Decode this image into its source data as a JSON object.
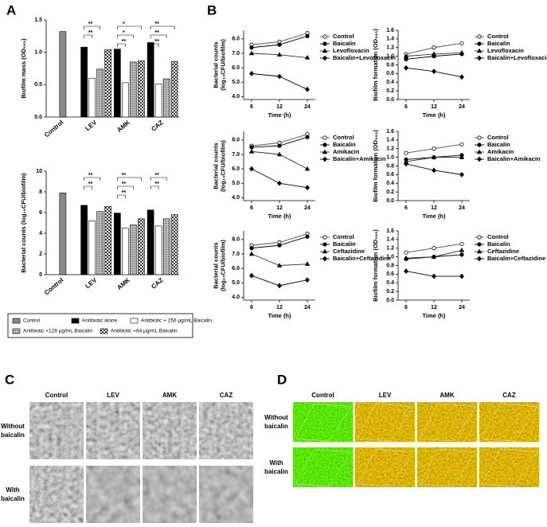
{
  "panels": [
    "A",
    "B",
    "C",
    "D"
  ],
  "chart_data": [
    {
      "type": "bar",
      "ylabel": "Biofilm mass (OD₅₉₅)",
      "categories": [
        "Control",
        "LEV",
        "AMK",
        "CAZ"
      ],
      "ylim": [
        0,
        1.5
      ],
      "yticks": [
        {
          "value": 0,
          "label": "0.0"
        },
        {
          "value": 0.5,
          "label": "0.5"
        },
        {
          "value": 1,
          "label": "1.0"
        },
        {
          "value": 1.5,
          "label": "1.5"
        }
      ],
      "series": [
        {
          "name": "Control",
          "color": "#8a8a8a",
          "values": [
            1.32,
            null,
            null,
            null
          ]
        },
        {
          "name": "Antibiotic alone",
          "color": "#000000",
          "values": [
            null,
            1.08,
            1.05,
            1.15
          ]
        },
        {
          "name": "Antibiotic + 256 μg/mL Baicalin",
          "color": "#ffffff",
          "values": [
            null,
            0.6,
            0.53,
            0.51
          ]
        },
        {
          "name": "Antibiotic +128 μg/mL Baicalin",
          "color": "#bdbdbd",
          "pattern": "dots",
          "values": [
            null,
            0.74,
            0.85,
            0.59
          ]
        },
        {
          "name": "Antibiotic +64 μg/mL Baicalin",
          "color": "#ffffff",
          "pattern": "checks",
          "values": [
            null,
            1.04,
            0.87,
            0.86
          ]
        }
      ],
      "significance": [
        {
          "category": 1,
          "series": [
            1,
            3
          ],
          "text": "**"
        },
        {
          "category": 1,
          "series": [
            1,
            2
          ],
          "text": "**"
        },
        {
          "category": 2,
          "series": [
            1,
            4
          ],
          "text": "*"
        },
        {
          "category": 2,
          "series": [
            1,
            3
          ],
          "text": "*"
        },
        {
          "category": 2,
          "series": [
            1,
            2
          ],
          "text": "**"
        },
        {
          "category": 3,
          "series": [
            1,
            4
          ],
          "text": "**"
        },
        {
          "category": 3,
          "series": [
            1,
            3
          ],
          "text": "**"
        },
        {
          "category": 3,
          "series": [
            1,
            2
          ],
          "text": "**"
        }
      ]
    },
    {
      "type": "bar",
      "ylabel": "Bacterial counts (log₁₀CFU/biofilm)",
      "categories": [
        "Control",
        "LEV",
        "AMK",
        "CAZ"
      ],
      "ylim": [
        0,
        10
      ],
      "yticks": [
        0,
        2,
        4,
        6,
        8,
        10
      ],
      "series": [
        {
          "color": "#8a8a8a",
          "values": [
            7.9,
            null,
            null,
            null
          ]
        },
        {
          "color": "#000000",
          "values": [
            null,
            6.7,
            5.95,
            6.25
          ]
        },
        {
          "color": "#ffffff",
          "values": [
            null,
            5.2,
            4.5,
            4.7
          ]
        },
        {
          "color": "#bdbdbd",
          "pattern": "dots",
          "values": [
            null,
            6.1,
            4.8,
            5.4
          ]
        },
        {
          "color": "#ffffff",
          "pattern": "checks",
          "values": [
            null,
            6.6,
            5.4,
            5.8
          ]
        }
      ],
      "significance": [
        {
          "category": 1,
          "series": [
            1,
            3
          ],
          "text": "**"
        },
        {
          "category": 1,
          "series": [
            1,
            2
          ],
          "text": "**"
        },
        {
          "category": 2,
          "series": [
            1,
            4
          ],
          "text": "**"
        },
        {
          "category": 2,
          "series": [
            1,
            3
          ],
          "text": "**"
        },
        {
          "category": 2,
          "series": [
            1,
            2
          ],
          "text": "**"
        },
        {
          "category": 3,
          "series": [
            1,
            3
          ],
          "text": "**"
        },
        {
          "category": 3,
          "series": [
            1,
            2
          ],
          "text": "**"
        }
      ]
    },
    {
      "type": "line",
      "ylabel": [
        "Bacterial counts",
        "(log₁₀CFU/biofilm)"
      ],
      "xlabel": "Time (h)",
      "categories": [
        "6",
        "12",
        "24"
      ],
      "ylim": [
        3.8,
        8.6
      ],
      "yticks": [
        {
          "value": 4,
          "label": "4.0"
        },
        {
          "value": 5,
          "label": "5.0"
        },
        {
          "value": 6,
          "label": "6.0"
        },
        {
          "value": 7,
          "label": "7.0"
        },
        {
          "value": 8,
          "label": "8.0"
        }
      ],
      "series": [
        {
          "name": "Control",
          "color": "#555555",
          "marker": "circle-open",
          "values": [
            7.6,
            7.8,
            8.4
          ]
        },
        {
          "name": "Baicalin",
          "color": "#000000",
          "marker": "circle",
          "values": [
            7.4,
            7.6,
            8.2
          ]
        },
        {
          "name": "Levofloxacin",
          "color": "#333333",
          "marker": "triangle",
          "values": [
            7.0,
            6.9,
            6.7
          ]
        },
        {
          "name": "Baicalin+Levofloxacin",
          "color": "#000000",
          "marker": "diamond",
          "values": [
            5.6,
            5.4,
            4.5
          ]
        }
      ]
    },
    {
      "type": "line",
      "ylabel": [
        "Biofilm formation (OD₅₉₅)"
      ],
      "xlabel": "Time (h)",
      "categories": [
        "6",
        "12",
        "24"
      ],
      "ylim": [
        0,
        1.6
      ],
      "yticks": [
        {
          "value": 0,
          "label": "0.0"
        },
        {
          "value": 0.2,
          "label": "0.2"
        },
        {
          "value": 0.4,
          "label": "0.4"
        },
        {
          "value": 0.6,
          "label": "0.6"
        },
        {
          "value": 0.8,
          "label": "0.8"
        },
        {
          "value": 1,
          "label": "1.0"
        },
        {
          "value": 1.2,
          "label": "1.2"
        },
        {
          "value": 1.4,
          "label": "1.4"
        },
        {
          "value": 1.6,
          "label": "1.6"
        }
      ],
      "series": [
        {
          "name": "Control",
          "color": "#555555",
          "marker": "circle-open",
          "values": [
            1.05,
            1.2,
            1.3
          ]
        },
        {
          "name": "Baicalin",
          "color": "#000000",
          "marker": "circle",
          "values": [
            0.93,
            1.0,
            1.05
          ]
        },
        {
          "name": "Levofloxacin",
          "color": "#333333",
          "marker": "triangle",
          "values": [
            1.0,
            1.05,
            1.08
          ]
        },
        {
          "name": "Baicalin+Levofloxacin",
          "color": "#000000",
          "marker": "diamond",
          "values": [
            0.73,
            0.65,
            0.52
          ]
        }
      ]
    },
    {
      "type": "line",
      "ylabel": [
        "Bacterial counts",
        "(log₁₀CFU/biofilm)"
      ],
      "xlabel": "Time (h)",
      "categories": [
        "6",
        "12",
        "24"
      ],
      "ylim": [
        3.8,
        8.6
      ],
      "yticks": [
        {
          "value": 4,
          "label": "4.0"
        },
        {
          "value": 5,
          "label": "5.0"
        },
        {
          "value": 6,
          "label": "6.0"
        },
        {
          "value": 7,
          "label": "7.0"
        },
        {
          "value": 8,
          "label": "8.0"
        }
      ],
      "series": [
        {
          "name": "Control",
          "color": "#555555",
          "marker": "circle-open",
          "values": [
            7.6,
            7.8,
            8.4
          ]
        },
        {
          "name": "Baicalin",
          "color": "#000000",
          "marker": "circle",
          "values": [
            7.5,
            7.6,
            8.2
          ]
        },
        {
          "name": "Amikacin",
          "color": "#333333",
          "marker": "triangle",
          "values": [
            7.2,
            7.0,
            6.0
          ]
        },
        {
          "name": "Baicalin+Amikacin",
          "color": "#000000",
          "marker": "diamond",
          "values": [
            6.0,
            5.0,
            4.7
          ]
        }
      ]
    },
    {
      "type": "line",
      "ylabel": [
        "Biofilm formation (OD₅₉₅)"
      ],
      "xlabel": "Time (h)",
      "categories": [
        "6",
        "12",
        "24"
      ],
      "ylim": [
        0,
        1.6
      ],
      "yticks": [
        {
          "value": 0,
          "label": "0.0"
        },
        {
          "value": 0.2,
          "label": "0.2"
        },
        {
          "value": 0.4,
          "label": "0.4"
        },
        {
          "value": 0.6,
          "label": "0.6"
        },
        {
          "value": 0.8,
          "label": "0.8"
        },
        {
          "value": 1,
          "label": "1.0"
        },
        {
          "value": 1.2,
          "label": "1.2"
        },
        {
          "value": 1.4,
          "label": "1.4"
        },
        {
          "value": 1.6,
          "label": "1.6"
        }
      ],
      "series": [
        {
          "name": "Control",
          "color": "#555555",
          "marker": "circle-open",
          "values": [
            1.1,
            1.2,
            1.3
          ]
        },
        {
          "name": "Baicalin",
          "color": "#000000",
          "marker": "circle",
          "values": [
            0.95,
            1.0,
            1.05
          ]
        },
        {
          "name": "Amikacin",
          "color": "#333333",
          "marker": "triangle",
          "values": [
            0.9,
            1.0,
            1.0
          ]
        },
        {
          "name": "Baicalin+Amikacin",
          "color": "#000000",
          "marker": "diamond",
          "values": [
            0.85,
            0.7,
            0.6
          ]
        }
      ]
    },
    {
      "type": "line",
      "ylabel": [
        "Bacterial counts",
        "(log₁₀CFU/biofilm)"
      ],
      "xlabel": "Time (h)",
      "categories": [
        "6",
        "12",
        "24"
      ],
      "ylim": [
        3.8,
        8.6
      ],
      "yticks": [
        {
          "value": 4,
          "label": "4.0"
        },
        {
          "value": 5,
          "label": "5.0"
        },
        {
          "value": 6,
          "label": "6.0"
        },
        {
          "value": 7,
          "label": "7.0"
        },
        {
          "value": 8,
          "label": "8.0"
        }
      ],
      "series": [
        {
          "name": "Control",
          "color": "#555555",
          "marker": "circle-open",
          "values": [
            7.6,
            7.8,
            8.4
          ]
        },
        {
          "name": "Baicalin",
          "color": "#000000",
          "marker": "circle",
          "values": [
            7.4,
            7.6,
            8.2
          ]
        },
        {
          "name": "Ceftazidine",
          "color": "#333333",
          "marker": "triangle",
          "values": [
            7.0,
            6.2,
            6.3
          ]
        },
        {
          "name": "Baicalin+Ceftazidine",
          "color": "#000000",
          "marker": "diamond",
          "values": [
            5.5,
            4.8,
            5.2
          ]
        }
      ]
    },
    {
      "type": "line",
      "ylabel": [
        "Biofilm formation (OD₅₉₅)"
      ],
      "xlabel": "Time (h)",
      "categories": [
        "6",
        "12",
        "24"
      ],
      "ylim": [
        0,
        1.6
      ],
      "yticks": [
        {
          "value": 0,
          "label": "0.0"
        },
        {
          "value": 0.2,
          "label": "0.2"
        },
        {
          "value": 0.4,
          "label": "0.4"
        },
        {
          "value": 0.6,
          "label": "0.6"
        },
        {
          "value": 0.8,
          "label": "0.8"
        },
        {
          "value": 1,
          "label": "1.0"
        },
        {
          "value": 1.2,
          "label": "1.2"
        },
        {
          "value": 1.4,
          "label": "1.4"
        },
        {
          "value": 1.6,
          "label": "1.6"
        }
      ],
      "series": [
        {
          "name": "Control",
          "color": "#555555",
          "marker": "circle-open",
          "values": [
            1.1,
            1.2,
            1.3
          ]
        },
        {
          "name": "Baicalin",
          "color": "#000000",
          "marker": "circle",
          "values": [
            0.95,
            1.0,
            1.05
          ]
        },
        {
          "name": "Ceftazidine",
          "color": "#333333",
          "marker": "triangle",
          "values": [
            0.97,
            1.0,
            1.15
          ]
        },
        {
          "name": "Baicalin+Ceftazidine",
          "color": "#000000",
          "marker": "diamond",
          "values": [
            0.67,
            0.55,
            0.55
          ]
        }
      ]
    }
  ],
  "images_C": {
    "columns": [
      "Control",
      "LEV",
      "AMK",
      "CAZ"
    ],
    "rows": [
      "Without baicalin",
      "With baicalin"
    ]
  },
  "images_D": {
    "columns": [
      "Control",
      "LEV",
      "AMK",
      "CAZ"
    ],
    "rows": [
      "Without baicalin",
      "With baicalin"
    ]
  }
}
